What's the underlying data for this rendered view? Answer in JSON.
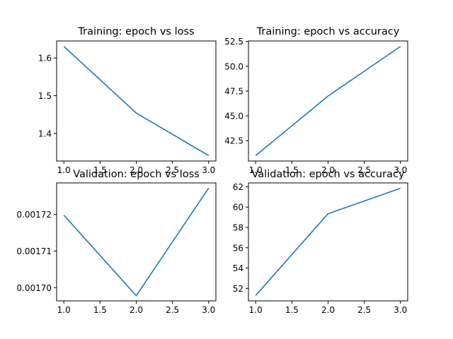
{
  "figure": {
    "background": "#ffffff",
    "line_color": "#1f77b4"
  },
  "chart_data": [
    {
      "type": "line",
      "title": "Training: epoch vs loss",
      "xlabel": "",
      "ylabel": "",
      "x": [
        1,
        2,
        3
      ],
      "series": [
        {
          "values": [
            1.631,
            1.454,
            1.341
          ]
        }
      ],
      "xlim": [
        0.9,
        3.1
      ],
      "ylim": [
        1.3265,
        1.6455
      ],
      "xticks": [
        1.0,
        1.5,
        2.0,
        2.5,
        3.0
      ],
      "xtick_labels": [
        "1.0",
        "1.5",
        "2.0",
        "2.5",
        "3.0"
      ],
      "yticks": [
        1.4,
        1.5,
        1.6
      ],
      "ytick_labels": [
        "1.4",
        "1.5",
        "1.6"
      ],
      "grid": false,
      "legend": "none"
    },
    {
      "type": "line",
      "title": "Training: epoch vs accuracy",
      "xlabel": "",
      "ylabel": "",
      "x": [
        1,
        2,
        3
      ],
      "series": [
        {
          "values": [
            41.0,
            47.0,
            52.0
          ]
        }
      ],
      "xlim": [
        0.9,
        3.1
      ],
      "ylim": [
        40.45,
        52.55
      ],
      "xticks": [
        1.0,
        1.5,
        2.0,
        2.5,
        3.0
      ],
      "xtick_labels": [
        "1.0",
        "1.5",
        "2.0",
        "2.5",
        "3.0"
      ],
      "yticks": [
        42.5,
        45.0,
        47.5,
        50.0,
        52.5
      ],
      "ytick_labels": [
        "42.5",
        "45.0",
        "47.5",
        "50.0",
        "52.5"
      ],
      "grid": false,
      "legend": "none"
    },
    {
      "type": "line",
      "title": "Validation: epoch vs loss",
      "xlabel": "",
      "ylabel": "",
      "x": [
        1,
        2,
        3
      ],
      "series": [
        {
          "values": [
            0.0017198,
            0.0016978,
            0.0017272
          ]
        }
      ],
      "xlim": [
        0.9,
        3.1
      ],
      "ylim": [
        0.0016964,
        0.0017286
      ],
      "xticks": [
        1.0,
        1.5,
        2.0,
        2.5,
        3.0
      ],
      "xtick_labels": [
        "1.0",
        "1.5",
        "2.0",
        "2.5",
        "3.0"
      ],
      "yticks": [
        0.0017,
        0.00171,
        0.00172
      ],
      "ytick_labels": [
        "0.00170",
        "0.00171",
        "0.00172"
      ],
      "grid": false,
      "legend": "none"
    },
    {
      "type": "line",
      "title": "Validation: epoch vs accuracy",
      "xlabel": "",
      "ylabel": "",
      "x": [
        1,
        2,
        3
      ],
      "series": [
        {
          "values": [
            51.3,
            59.35,
            61.85
          ]
        }
      ],
      "xlim": [
        0.9,
        3.1
      ],
      "ylim": [
        50.77,
        62.38
      ],
      "xticks": [
        1.0,
        1.5,
        2.0,
        2.5,
        3.0
      ],
      "xtick_labels": [
        "1.0",
        "1.5",
        "2.0",
        "2.5",
        "3.0"
      ],
      "yticks": [
        52,
        54,
        56,
        58,
        60,
        62
      ],
      "ytick_labels": [
        "52",
        "54",
        "56",
        "58",
        "60",
        "62"
      ],
      "grid": false,
      "legend": "none"
    }
  ]
}
